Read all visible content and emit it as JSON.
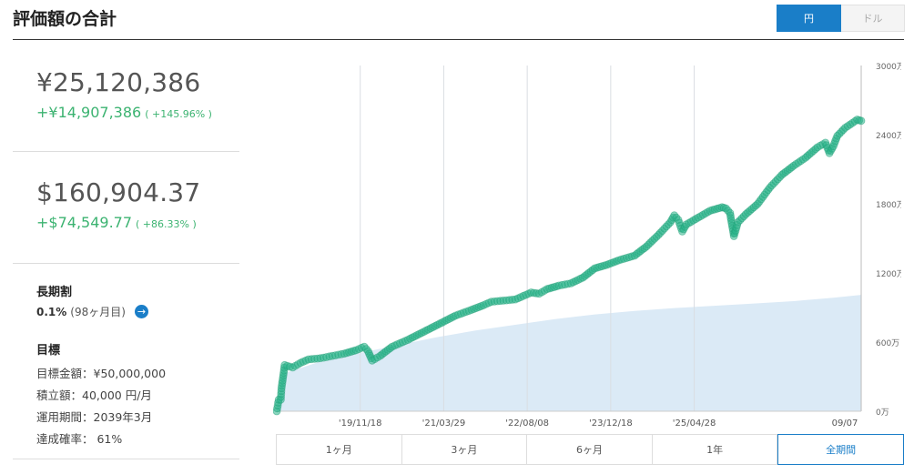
{
  "header": {
    "title": "評価額の合計"
  },
  "currency_toggle": {
    "yen": "円",
    "usd": "ドル",
    "selected": "円"
  },
  "yen_total": {
    "value": "¥25,120,386",
    "gain": "+¥14,907,386",
    "pct": "( +145.96% )"
  },
  "usd_total": {
    "value": "$160,904.37",
    "gain": "+$74,549.77",
    "pct": "( +86.33% )"
  },
  "long_term": {
    "heading": "長期割",
    "rate": "0.1%",
    "months": "(98ヶ月目)"
  },
  "goal": {
    "heading": "目標",
    "rows": [
      "目標金額：¥50,000,000",
      "積立額：40,000 円/月",
      "運用期間：2039年3月",
      "達成確率： 61%"
    ]
  },
  "ranges": [
    "1ヶ月",
    "3ヶ月",
    "6ヶ月",
    "1年",
    "全期間"
  ],
  "active_range": "全期間",
  "colors": {
    "accent": "#1a7ec8",
    "series": "#2ab58a",
    "area": "#dbeaf6",
    "gain": "#3cb371"
  },
  "chart_data": {
    "type": "line",
    "x_ticks": [
      "'19/11/18",
      "'21/03/29",
      "'22/08/08",
      "'23/12/18",
      "'25/04/28",
      "09/07"
    ],
    "y_ticks": [
      "3000万",
      "2400万",
      "1800万",
      "1200万",
      "600万",
      "0万"
    ],
    "ylim": [
      0,
      3000
    ],
    "y_unit": "万",
    "series": [
      {
        "kind": "value",
        "points": [
          [
            0,
            0
          ],
          [
            0.5,
            100
          ],
          [
            1,
            100
          ],
          [
            1.2,
            200
          ],
          [
            2,
            400
          ],
          [
            4,
            380
          ],
          [
            6,
            420
          ],
          [
            8,
            450
          ],
          [
            11,
            460
          ],
          [
            14,
            480
          ],
          [
            17,
            500
          ],
          [
            20,
            530
          ],
          [
            22,
            560
          ],
          [
            23,
            520
          ],
          [
            24,
            440
          ],
          [
            26,
            480
          ],
          [
            29,
            560
          ],
          [
            33,
            620
          ],
          [
            37,
            690
          ],
          [
            41,
            760
          ],
          [
            45,
            830
          ],
          [
            49,
            880
          ],
          [
            52,
            920
          ],
          [
            54,
            950
          ],
          [
            57,
            960
          ],
          [
            60,
            970
          ],
          [
            62,
            1000
          ],
          [
            64,
            1030
          ],
          [
            66,
            1020
          ],
          [
            68,
            1060
          ],
          [
            71,
            1090
          ],
          [
            74,
            1110
          ],
          [
            77,
            1160
          ],
          [
            80,
            1240
          ],
          [
            83,
            1270
          ],
          [
            86,
            1310
          ],
          [
            88,
            1330
          ],
          [
            90,
            1350
          ],
          [
            93,
            1430
          ],
          [
            96,
            1530
          ],
          [
            99,
            1640
          ],
          [
            100,
            1700
          ],
          [
            101,
            1660
          ],
          [
            102,
            1560
          ],
          [
            103,
            1620
          ],
          [
            106,
            1680
          ],
          [
            109,
            1740
          ],
          [
            112,
            1770
          ],
          [
            113,
            1760
          ],
          [
            114,
            1720
          ],
          [
            115,
            1520
          ],
          [
            116,
            1640
          ],
          [
            118,
            1710
          ],
          [
            121,
            1800
          ],
          [
            124,
            1940
          ],
          [
            127,
            2050
          ],
          [
            130,
            2130
          ],
          [
            133,
            2200
          ],
          [
            136,
            2290
          ],
          [
            138,
            2330
          ],
          [
            139,
            2240
          ],
          [
            140,
            2300
          ],
          [
            141,
            2390
          ],
          [
            143,
            2460
          ],
          [
            146,
            2530
          ],
          [
            147,
            2520
          ]
        ]
      },
      {
        "kind": "principal",
        "points": [
          [
            0,
            0
          ],
          [
            1,
            240
          ],
          [
            2,
            330
          ],
          [
            10,
            420
          ],
          [
            20,
            500
          ],
          [
            30,
            570
          ],
          [
            40,
            640
          ],
          [
            50,
            700
          ],
          [
            60,
            750
          ],
          [
            70,
            800
          ],
          [
            80,
            840
          ],
          [
            90,
            870
          ],
          [
            100,
            895
          ],
          [
            110,
            915
          ],
          [
            120,
            935
          ],
          [
            130,
            955
          ],
          [
            140,
            985
          ],
          [
            147,
            1010
          ]
        ]
      }
    ]
  }
}
